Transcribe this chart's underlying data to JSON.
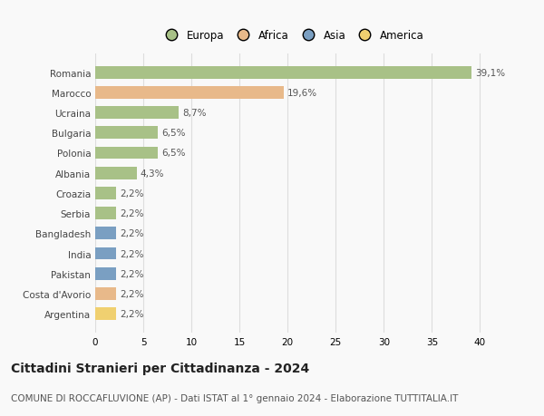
{
  "countries": [
    "Romania",
    "Marocco",
    "Ucraina",
    "Bulgaria",
    "Polonia",
    "Albania",
    "Croazia",
    "Serbia",
    "Bangladesh",
    "India",
    "Pakistan",
    "Costa d'Avorio",
    "Argentina"
  ],
  "values": [
    39.1,
    19.6,
    8.7,
    6.5,
    6.5,
    4.3,
    2.2,
    2.2,
    2.2,
    2.2,
    2.2,
    2.2,
    2.2
  ],
  "labels": [
    "39,1%",
    "19,6%",
    "8,7%",
    "6,5%",
    "6,5%",
    "4,3%",
    "2,2%",
    "2,2%",
    "2,2%",
    "2,2%",
    "2,2%",
    "2,2%",
    "2,2%"
  ],
  "continents": [
    "Europa",
    "Africa",
    "Europa",
    "Europa",
    "Europa",
    "Europa",
    "Europa",
    "Europa",
    "Asia",
    "Asia",
    "Asia",
    "Africa",
    "America"
  ],
  "colors": {
    "Europa": "#a8c187",
    "Africa": "#e8b98a",
    "Asia": "#7a9fc2",
    "America": "#f0d070"
  },
  "legend_order": [
    "Europa",
    "Africa",
    "Asia",
    "America"
  ],
  "legend_colors": [
    "#a8c187",
    "#e8b98a",
    "#7a9fc2",
    "#f0d070"
  ],
  "xlim": [
    0,
    41
  ],
  "xticks": [
    0,
    5,
    10,
    15,
    20,
    25,
    30,
    35,
    40
  ],
  "title": "Cittadini Stranieri per Cittadinanza - 2024",
  "subtitle": "COMUNE DI ROCCAFLUVIONE (AP) - Dati ISTAT al 1° gennaio 2024 - Elaborazione TUTTITALIA.IT",
  "bg_color": "#f9f9f9",
  "grid_color": "#dddddd",
  "bar_height": 0.62,
  "label_fontsize": 7.5,
  "tick_fontsize": 7.5,
  "title_fontsize": 10,
  "subtitle_fontsize": 7.5,
  "legend_fontsize": 8.5
}
